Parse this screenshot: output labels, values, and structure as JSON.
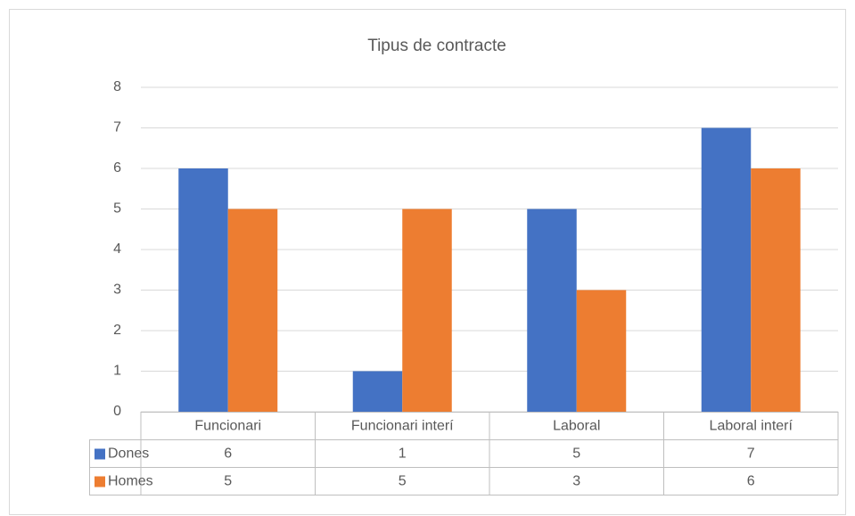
{
  "chart_data": {
    "type": "bar",
    "title": "Tipus de contracte",
    "categories": [
      "Funcionari",
      "Funcionari interí",
      "Laboral",
      "Laboral interí"
    ],
    "series": [
      {
        "name": "Dones",
        "color": "#4472c4",
        "values": [
          6,
          1,
          5,
          7
        ]
      },
      {
        "name": "Homes",
        "color": "#ed7d31",
        "values": [
          5,
          5,
          3,
          6
        ]
      }
    ],
    "ylim": [
      0,
      8
    ],
    "yticks": [
      0,
      1,
      2,
      3,
      4,
      5,
      6,
      7,
      8
    ],
    "grid": true,
    "legend": "data-table"
  }
}
